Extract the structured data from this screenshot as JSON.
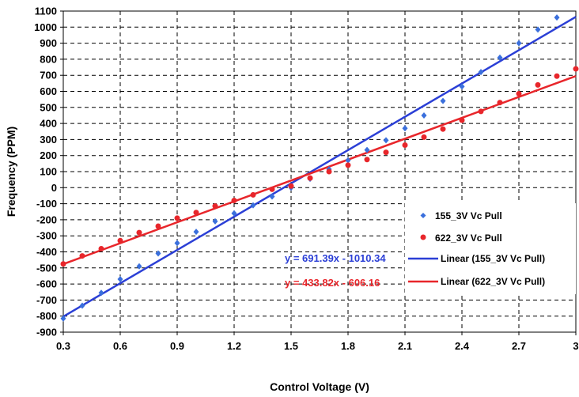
{
  "chart_data": {
    "type": "scatter",
    "xlabel": "Control Voltage (V)",
    "ylabel": "Frequency (PPM)",
    "xlim": [
      0.3,
      3.0
    ],
    "ylim": [
      -900,
      1100
    ],
    "x_ticks": [
      0.3,
      0.6,
      0.9,
      1.2,
      1.5,
      1.8,
      2.1,
      2.4,
      2.7,
      3.0
    ],
    "x_tick_labels": [
      "0.3",
      "0.6",
      "0.9",
      "1.2",
      "1.5",
      "1.8",
      "2.1",
      "2.4",
      "2.7",
      "3"
    ],
    "y_ticks": [
      -900,
      -800,
      -700,
      -600,
      -500,
      -400,
      -300,
      -200,
      -100,
      0,
      100,
      200,
      300,
      400,
      500,
      600,
      700,
      800,
      900,
      1000,
      1100
    ],
    "grid": "dashed",
    "legend_position": "bottom-right",
    "series": [
      {
        "name": "155_3V Vc Pull",
        "marker": "diamond",
        "color": "#3a6fdc",
        "x": [
          0.3,
          0.4,
          0.5,
          0.6,
          0.7,
          0.8,
          0.9,
          1.0,
          1.1,
          1.2,
          1.3,
          1.4,
          1.5,
          1.6,
          1.7,
          1.8,
          1.9,
          2.0,
          2.1,
          2.2,
          2.3,
          2.4,
          2.5,
          2.6,
          2.7,
          2.8,
          2.9
        ],
        "y": [
          -815,
          -735,
          -655,
          -570,
          -490,
          -410,
          -345,
          -275,
          -210,
          -160,
          -110,
          -55,
          0,
          55,
          115,
          170,
          235,
          295,
          370,
          450,
          540,
          630,
          720,
          810,
          900,
          985,
          1060
        ]
      },
      {
        "name": "622_3V Vc Pull",
        "marker": "circle",
        "color": "#e8262b",
        "x": [
          0.3,
          0.4,
          0.5,
          0.6,
          0.7,
          0.8,
          0.9,
          1.0,
          1.1,
          1.2,
          1.3,
          1.4,
          1.5,
          1.6,
          1.7,
          1.8,
          1.9,
          2.0,
          2.1,
          2.2,
          2.3,
          2.4,
          2.5,
          2.6,
          2.7,
          2.8,
          2.9,
          3.0
        ],
        "y": [
          -475,
          -425,
          -380,
          -330,
          -280,
          -240,
          -190,
          -155,
          -115,
          -80,
          -45,
          -10,
          10,
          60,
          100,
          140,
          175,
          220,
          265,
          315,
          365,
          420,
          475,
          530,
          585,
          640,
          695,
          740
        ]
      }
    ],
    "trendlines": [
      {
        "name": "Linear (155_3V Vc Pull)",
        "slope": 691.39,
        "intercept": -1010.34,
        "equation": "y = 691.39x - 1010.34",
        "color": "#2b3fd6"
      },
      {
        "name": "Linear (622_3V Vc Pull)",
        "slope": 433.82,
        "intercept": -606.16,
        "equation": "y = 433.82x - 606.16",
        "color": "#e8262b"
      }
    ]
  }
}
